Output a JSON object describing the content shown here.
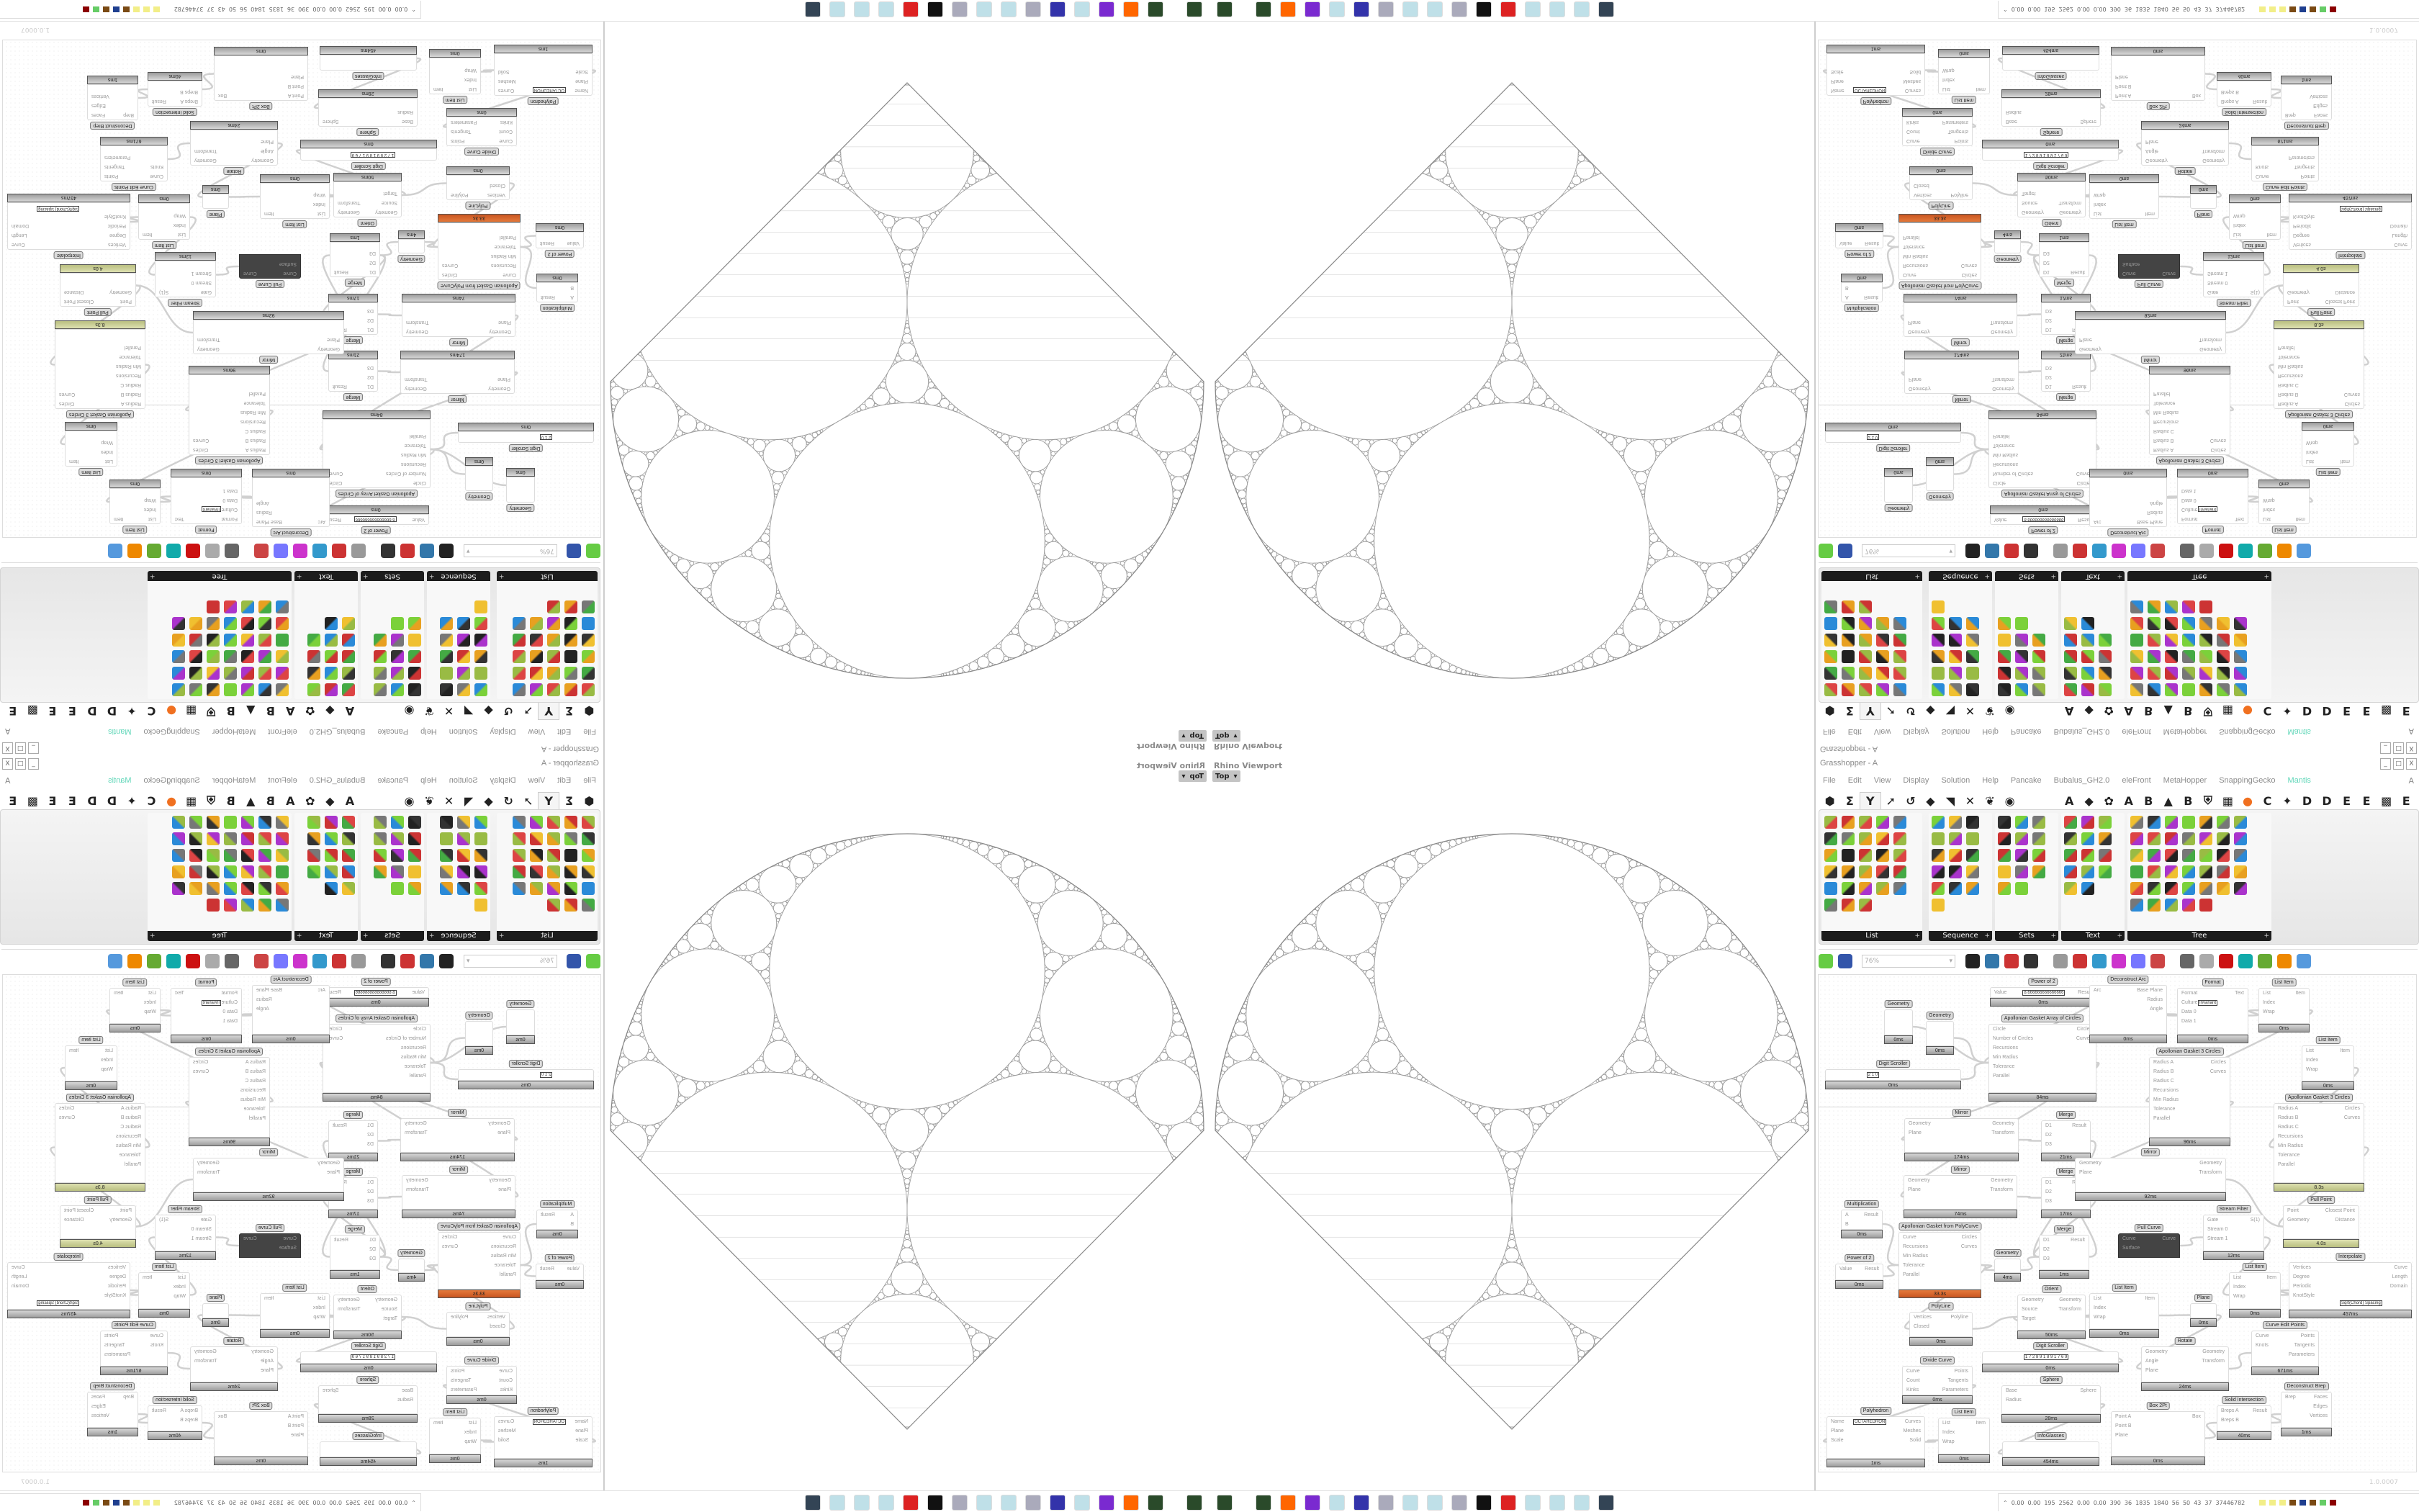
{
  "viewport": {
    "label": "Rhino Viewport",
    "view": "Top",
    "dropdown_icon": "chevron-down-icon"
  },
  "grasshopper": {
    "title": "Grasshopper - A",
    "window_buttons": [
      "_",
      "□",
      "X"
    ],
    "menu": [
      "File",
      "Edit",
      "View",
      "Display",
      "Solution",
      "Help",
      "Pancake",
      "Bubalus_GH2.0",
      "eleFront",
      "MetaHopper",
      "SnappingGecko",
      "Mantis"
    ],
    "menu_right": "A",
    "tabs_icons": [
      "⬢",
      "Σ",
      "Y",
      "➚",
      "↺",
      "◆",
      "◥",
      "✕",
      "❦",
      "◉"
    ],
    "active_tab": 2,
    "tabs_letters": [
      "A",
      "◆",
      "✿",
      "A",
      "B",
      "▲",
      "B",
      "⛨",
      "▦",
      "●",
      "C",
      "✦",
      "D",
      "D",
      "E",
      "E",
      "▩",
      "E"
    ],
    "panel_groups": [
      {
        "label": "List",
        "icons": 28,
        "cols": 5
      },
      {
        "label": "Sequence",
        "icons": 16,
        "cols": 3
      },
      {
        "label": "Sets",
        "icons": 14,
        "cols": 3
      },
      {
        "label": "Text",
        "icons": 14,
        "cols": 3
      },
      {
        "label": "Tree",
        "icons": 40,
        "cols": 7
      }
    ],
    "zoom": "76%",
    "footer": "1.0.0007",
    "colors": {
      "error": "#d4652a",
      "warning": "#c4cc90",
      "mantis": "#5fd6b8"
    }
  },
  "canvas": {
    "nodes": [
      {
        "title": "Power of 2",
        "in": [
          "Value"
        ],
        "out": [
          "Result"
        ],
        "time": "0ms",
        "value": "8.666666666666666"
      },
      {
        "title": "Apollonian Gasket Array of Circles",
        "in": [
          "Circle",
          "Number of Circles",
          "Recursions",
          "Min Radius",
          "Tolerance",
          "Parallel"
        ],
        "out": [
          "Circles",
          "Curves"
        ],
        "time": "84ms"
      },
      {
        "title": "Geometry",
        "in": [],
        "out": [],
        "time": "0ms"
      },
      {
        "title": "Geometry",
        "in": [],
        "out": [],
        "time": "0ms"
      },
      {
        "title": "Digit Scroller",
        "in": [],
        "out": [],
        "time": "0ms",
        "value": "2 1 0"
      },
      {
        "title": "Mirror",
        "in": [
          "Geometry",
          "Plane"
        ],
        "out": [
          "Geometry",
          "Transform"
        ],
        "time": "174ms"
      },
      {
        "title": "Merge",
        "in": [
          "D1",
          "D2",
          "D3"
        ],
        "out": [
          "Result"
        ],
        "time": "21ms"
      },
      {
        "title": "Mirror",
        "in": [
          "Geometry",
          "Plane"
        ],
        "out": [
          "Geometry",
          "Transform"
        ],
        "time": "74ms"
      },
      {
        "title": "Merge",
        "in": [
          "D1",
          "D2",
          "D3"
        ],
        "out": [
          "Result"
        ],
        "time": "17ms"
      },
      {
        "title": "Multiplication",
        "in": [
          "A",
          "B"
        ],
        "out": [
          "Result"
        ],
        "time": "0ms"
      },
      {
        "title": "Apollonian Gasket from PolyCurve",
        "in": [
          "Curve",
          "Recursions",
          "Min Radius",
          "Tolerance",
          "Parallel"
        ],
        "out": [
          "Circles",
          "Curves"
        ],
        "time": "33.3s",
        "state": "err"
      },
      {
        "title": "Power of 2",
        "in": [
          "Value"
        ],
        "out": [
          "Result"
        ],
        "time": "0ms"
      },
      {
        "title": "Geometry",
        "in": [],
        "out": [],
        "time": "4ms"
      },
      {
        "title": "Merge",
        "in": [
          "D1",
          "D2",
          "D3"
        ],
        "out": [
          "Result"
        ],
        "time": "1ms"
      },
      {
        "title": "Orient",
        "in": [
          "Geometry",
          "Source",
          "Target"
        ],
        "out": [
          "Geometry",
          "Transform"
        ],
        "time": "50ms"
      },
      {
        "title": "PolyLine",
        "in": [
          "Vertices",
          "Closed"
        ],
        "out": [
          "Polyline"
        ],
        "time": "0ms"
      },
      {
        "title": "Divide Curve",
        "in": [
          "Curve",
          "Count",
          "Kinks"
        ],
        "out": [
          "Points",
          "Tangents",
          "Parameters"
        ],
        "time": "0ms"
      },
      {
        "title": "Digit Scroller",
        "in": [],
        "out": [],
        "time": "0ms",
        "value": "1 7 2 8 9 1 8 9 1 7 6 9"
      },
      {
        "title": "Sphere",
        "in": [
          "Base",
          "Radius"
        ],
        "out": [
          "Sphere"
        ],
        "time": "28ms"
      },
      {
        "title": "Polyhedron",
        "in": [
          "Name",
          "Plane",
          "Scale"
        ],
        "out": [
          "Curves",
          "Meshes",
          "Solid"
        ],
        "time": "1ms",
        "value": "OCTAHEDRON"
      },
      {
        "title": "List Item",
        "in": [
          "List",
          "Index",
          "Wrap"
        ],
        "out": [
          "Item"
        ],
        "time": "0ms"
      },
      {
        "title": "InfoGlasses",
        "in": [],
        "out": [],
        "time": "454ms"
      },
      {
        "title": "Deconstruct Arc",
        "in": [
          "Arc"
        ],
        "out": [
          "Base Plane",
          "Radius",
          "Angle"
        ],
        "time": "0ms"
      },
      {
        "title": "Format",
        "in": [
          "Format",
          "Culture",
          "Data 0",
          "Data 1"
        ],
        "out": [
          "Text"
        ],
        "time": "0ms",
        "value": "Invariant"
      },
      {
        "title": "List Item",
        "in": [
          "List",
          "Index",
          "Wrap"
        ],
        "out": [
          "Item"
        ],
        "time": "0ms"
      },
      {
        "title": "List Item",
        "in": [
          "List",
          "Index",
          "Wrap"
        ],
        "out": [
          "Item"
        ],
        "time": "0ms"
      },
      {
        "title": "Apollonian Gasket 3 Circles",
        "in": [
          "Radius A",
          "Radius B",
          "Radius C",
          "Recursions",
          "Min Radius",
          "Tolerance",
          "Parallel"
        ],
        "out": [
          "Circles",
          "Curves"
        ],
        "time": "96ms"
      },
      {
        "title": "Apollonian Gasket 3 Circles",
        "in": [
          "Radius A",
          "Radius B",
          "Radius C",
          "Recursions",
          "Min Radius",
          "Tolerance",
          "Parallel"
        ],
        "out": [
          "Circles",
          "Curves"
        ],
        "time": "8.3s",
        "state": "warn"
      },
      {
        "title": "Mirror",
        "in": [
          "Geometry",
          "Plane"
        ],
        "out": [
          "Geometry",
          "Transform"
        ],
        "time": "92ms"
      },
      {
        "title": "Pull Point",
        "in": [
          "Point",
          "Geometry"
        ],
        "out": [
          "Closest Point",
          "Distance"
        ],
        "time": "4.0s",
        "state": "warn"
      },
      {
        "title": "Stream Filter",
        "in": [
          "Gate",
          "Stream 0",
          "Stream 1"
        ],
        "out": [
          "S(1)"
        ],
        "time": "12ms"
      },
      {
        "title": "Pull Curve",
        "in": [
          "Curve",
          "Surface"
        ],
        "out": [
          "Curve"
        ],
        "time": "",
        "state": "dark"
      },
      {
        "title": "Interpolate",
        "in": [
          "Vertices",
          "Degree",
          "Periodic",
          "KnotStyle"
        ],
        "out": [
          "Curve",
          "Length",
          "Domain"
        ],
        "time": "457ms",
        "value": "Sqrt(Chord) Spacing"
      },
      {
        "title": "List Item",
        "in": [
          "List",
          "Index",
          "Wrap"
        ],
        "out": [
          "Item"
        ],
        "time": "0ms"
      },
      {
        "title": "List Item",
        "in": [
          "List",
          "Index",
          "Wrap"
        ],
        "out": [
          "Item"
        ],
        "time": "0ms"
      },
      {
        "title": "Plane",
        "in": [],
        "out": [],
        "time": "0ms"
      },
      {
        "title": "Rotate",
        "in": [
          "Geometry",
          "Angle",
          "Plane"
        ],
        "out": [
          "Geometry",
          "Transform"
        ],
        "time": "24ms"
      },
      {
        "title": "Curve Edit Points",
        "in": [
          "Curve",
          "Knots"
        ],
        "out": [
          "Points",
          "Tangents",
          "Parameters"
        ],
        "time": "671ms"
      },
      {
        "title": "Deconstruct Brep",
        "in": [
          "Brep"
        ],
        "out": [
          "Faces",
          "Edges",
          "Vertices"
        ],
        "time": "1ms"
      },
      {
        "title": "Solid Intersection",
        "in": [
          "Breps A",
          "Breps B"
        ],
        "out": [
          "Result"
        ],
        "time": "40ms"
      },
      {
        "title": "Box 2Pt",
        "in": [
          "Point A",
          "Point B",
          "Plane"
        ],
        "out": [
          "Box"
        ],
        "time": "0ms"
      }
    ]
  },
  "taskbar": {
    "icons": [
      "server-icon",
      "server-icon",
      "firefox-icon",
      "chat-icon",
      "notepad-icon",
      "floppy-64-icon",
      "scroll-icon",
      "notepad-icon",
      "notepad-icon",
      "scroll-icon",
      "rhino-icon",
      "gear-red-icon",
      "notepad-icon",
      "notepad-icon",
      "notepad-icon",
      "monitor-icon"
    ],
    "status": [
      "0.00",
      "0.00",
      "195",
      "2562",
      "0.00",
      "0.00",
      "390",
      "36",
      "1835",
      "1840",
      "56",
      "50",
      "43",
      "37",
      "37446782"
    ],
    "status_colors": [
      "#f2ee88",
      "#f2ee88",
      "#f2ee88",
      "#7a4a14",
      "#1f3f8f",
      "#7a4a14",
      "#66cc66",
      "#8b0000"
    ]
  }
}
